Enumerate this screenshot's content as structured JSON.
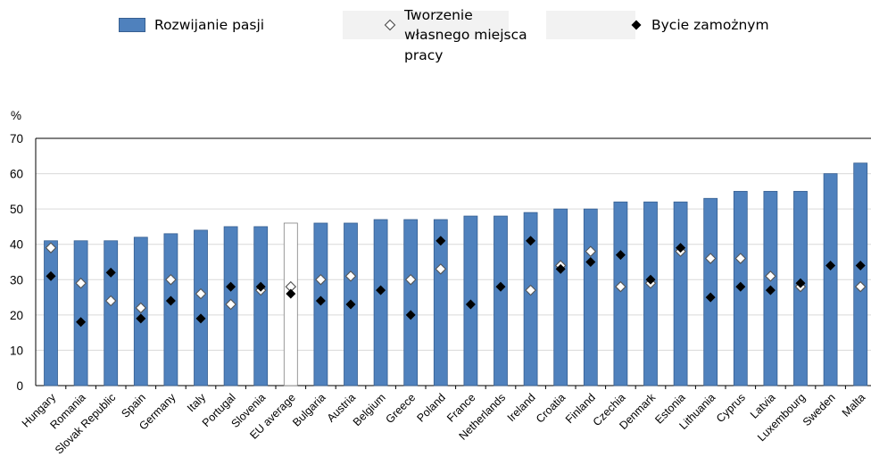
{
  "legend": {
    "bar_label": "Rozwijanie pasji",
    "open_label_line1": "Tworzenie",
    "open_label_line2": "własnego miejsca",
    "open_label_line3": "pracy",
    "filled_label": "Bycie zamożnym"
  },
  "colors": {
    "bar": "#4f81bd",
    "bar_edge": "#365f91",
    "highlight_bar": "#ffffff",
    "highlight_edge": "#7f7f7f",
    "grid": "#d9d9d9",
    "frame": "#000000"
  },
  "chart_data": {
    "type": "bar",
    "ylabel": "%",
    "ylim": [
      0,
      70
    ],
    "yticks": [
      0,
      10,
      20,
      30,
      40,
      50,
      60,
      70
    ],
    "grid": true,
    "highlight_category": "EU average",
    "categories": [
      "Hungary",
      "Romania",
      "Slovak Republic",
      "Spain",
      "Germany",
      "Italy",
      "Portugal",
      "Slovenia",
      "EU average",
      "Bulgaria",
      "Austria",
      "Belgium",
      "Greece",
      "Poland",
      "France",
      "Netherlands",
      "Ireland",
      "Croatia",
      "Finland",
      "Czechia",
      "Denmark",
      "Estonia",
      "Lithuania",
      "Cyprus",
      "Latvia",
      "Luxembourg",
      "Sweden",
      "Malta"
    ],
    "series": [
      {
        "name": "Rozwijanie pasji",
        "kind": "bar",
        "values": [
          41,
          41,
          41,
          42,
          43,
          44,
          45,
          45,
          46,
          46,
          46,
          47,
          47,
          47,
          48,
          48,
          49,
          50,
          50,
          52,
          52,
          52,
          53,
          55,
          55,
          55,
          60,
          63
        ]
      },
      {
        "name": "Tworzenie własnego miejsca pracy",
        "kind": "marker-open",
        "values": [
          39,
          29,
          24,
          22,
          30,
          26,
          23,
          27,
          28,
          30,
          31,
          null,
          30,
          33,
          null,
          null,
          27,
          34,
          38,
          28,
          29,
          38,
          36,
          36,
          31,
          28,
          null,
          28
        ]
      },
      {
        "name": "Bycie zamożnym",
        "kind": "marker-filled",
        "values": [
          31,
          18,
          32,
          19,
          24,
          19,
          28,
          28,
          26,
          24,
          23,
          27,
          20,
          41,
          23,
          28,
          41,
          33,
          35,
          37,
          30,
          39,
          25,
          28,
          27,
          29,
          34,
          34
        ]
      }
    ]
  }
}
